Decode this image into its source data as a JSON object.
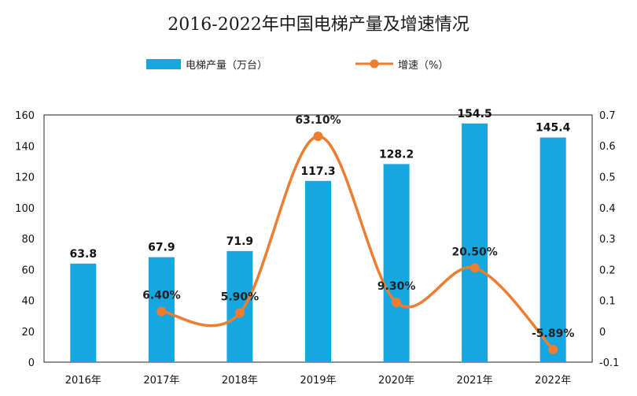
{
  "chart_data": {
    "type": "bar",
    "title": "2016-2022年中国电梯产量及增速情况",
    "categories": [
      "2016年",
      "2017年",
      "2018年",
      "2019年",
      "2020年",
      "2021年",
      "2022年"
    ],
    "series": [
      {
        "name": "电梯产量（万台）",
        "type": "bar",
        "axis": "left",
        "values": [
          63.8,
          67.9,
          71.9,
          117.3,
          128.2,
          154.5,
          145.4
        ],
        "labels": [
          "63.8",
          "67.9",
          "71.9",
          "117.3",
          "128.2",
          "154.5",
          "145.4"
        ],
        "color": "#16a6e0"
      },
      {
        "name": "增速（%）",
        "type": "line",
        "axis": "right",
        "values": [
          null,
          0.064,
          0.059,
          0.631,
          0.093,
          0.205,
          -0.0589
        ],
        "labels": [
          "",
          "6.40%",
          "5.90%",
          "63.10%",
          "9.30%",
          "20.50%",
          "-5.89%"
        ],
        "color": "#ed7d31"
      }
    ],
    "y_left": {
      "min": 0,
      "max": 160,
      "step": 20,
      "ticks": [
        "0",
        "20",
        "40",
        "60",
        "80",
        "100",
        "120",
        "140",
        "160"
      ]
    },
    "y_right": {
      "min": -0.1,
      "max": 0.7,
      "step": 0.1,
      "ticks": [
        "-0.1",
        "0",
        "0.1",
        "0.2",
        "0.3",
        "0.4",
        "0.5",
        "0.6",
        "0.7"
      ]
    },
    "legend_position": "top-center",
    "grid": false
  }
}
